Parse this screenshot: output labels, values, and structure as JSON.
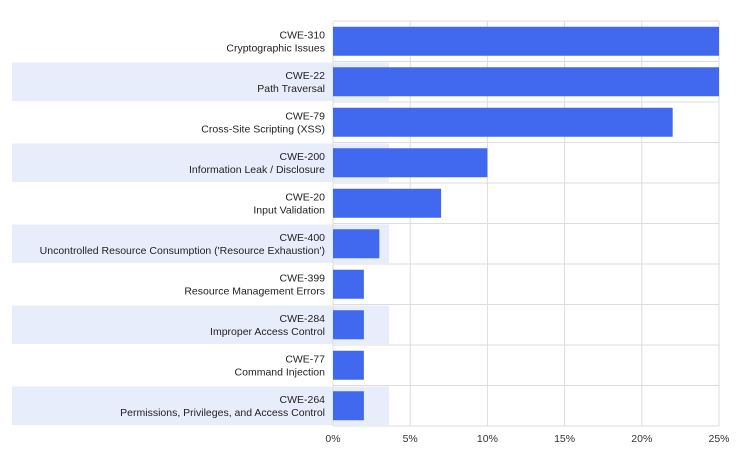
{
  "chart_data": {
    "type": "bar",
    "orientation": "horizontal",
    "categories": [
      {
        "id": "CWE-310",
        "name": "Cryptographic Issues"
      },
      {
        "id": "CWE-22",
        "name": "Path Traversal"
      },
      {
        "id": "CWE-79",
        "name": "Cross-Site Scripting (XSS)"
      },
      {
        "id": "CWE-200",
        "name": "Information Leak / Disclosure"
      },
      {
        "id": "CWE-20",
        "name": "Input Validation"
      },
      {
        "id": "CWE-400",
        "name": "Uncontrolled Resource Consumption ('Resource Exhaustion')"
      },
      {
        "id": "CWE-399",
        "name": "Resource Management Errors"
      },
      {
        "id": "CWE-284",
        "name": "Improper Access Control"
      },
      {
        "id": "CWE-77",
        "name": "Command Injection"
      },
      {
        "id": "CWE-264",
        "name": "Permissions, Privileges, and Access Control"
      }
    ],
    "values": [
      26,
      25,
      22,
      10,
      7,
      3,
      2,
      2,
      2,
      2
    ],
    "xlim": [
      0,
      25
    ],
    "xticks": [
      "0%",
      "5%",
      "10%",
      "15%",
      "20%",
      "25%"
    ],
    "xtick_values": [
      0,
      5,
      10,
      15,
      20,
      25
    ],
    "grid": "vertical",
    "colors": {
      "bar": "#4169f0",
      "band": "#e8edfb",
      "grid": "#dddddd"
    }
  }
}
